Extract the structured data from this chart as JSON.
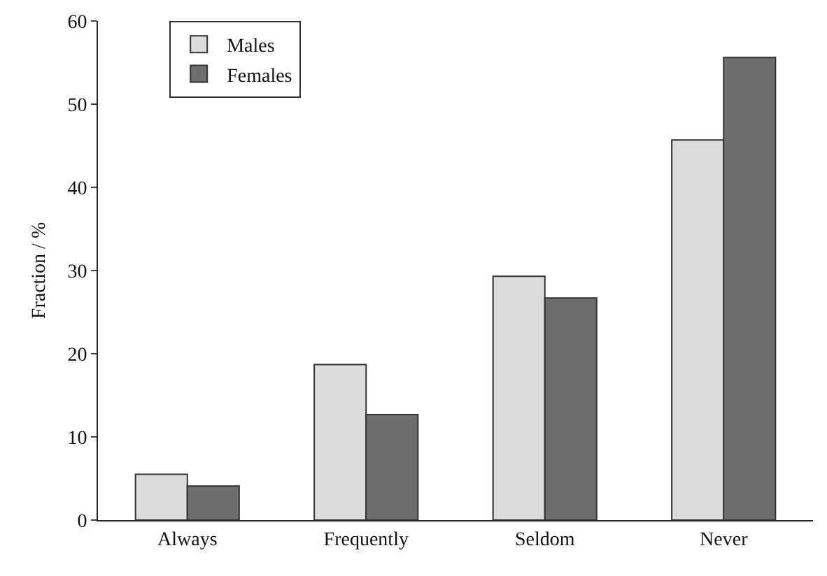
{
  "chart_data": {
    "type": "bar",
    "ylabel": "Fraction / %",
    "categories": [
      "Always",
      "Frequently",
      "Seldom",
      "Never"
    ],
    "series": [
      {
        "name": "Males",
        "color": "#dcdcdc",
        "values": [
          5.5,
          18.7,
          29.3,
          45.7
        ]
      },
      {
        "name": "Females",
        "color": "#6e6e6e",
        "values": [
          4.1,
          12.7,
          26.7,
          55.6
        ]
      }
    ],
    "ylim": [
      0,
      60
    ],
    "yticks": [
      0,
      10,
      20,
      30,
      40,
      50,
      60
    ],
    "grid": false,
    "legend": "top left"
  }
}
